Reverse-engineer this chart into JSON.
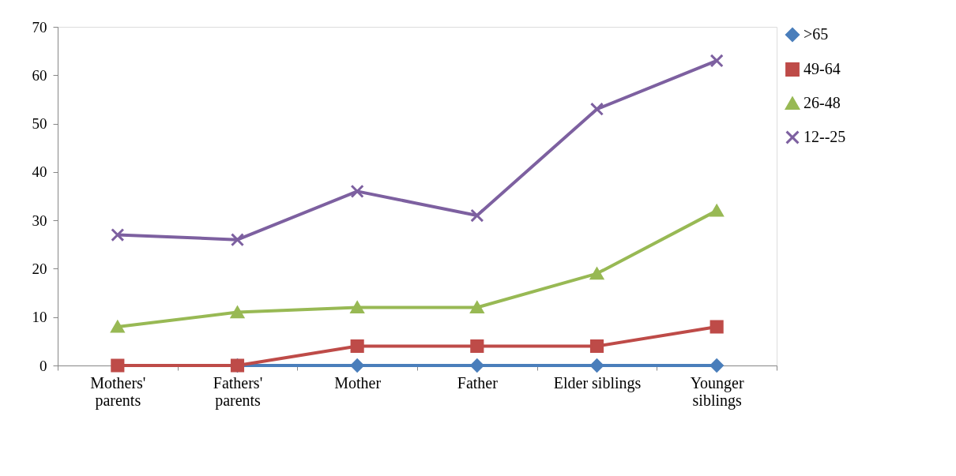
{
  "chart_data": {
    "type": "line",
    "categories": [
      "Mothers'\nparents",
      "Fathers'\nparents",
      "Mother",
      "Father",
      "Elder siblings",
      "Younger\nsiblings"
    ],
    "series": [
      {
        "name": ">65",
        "color": "#4a7ebb",
        "marker": "diamond",
        "values": [
          null,
          0,
          0,
          0,
          0,
          0
        ]
      },
      {
        "name": "49-64",
        "color": "#be4b48",
        "marker": "square",
        "values": [
          0,
          0,
          4,
          4,
          4,
          8
        ]
      },
      {
        "name": "26-48",
        "color": "#98b954",
        "marker": "triangle",
        "values": [
          8,
          11,
          12,
          12,
          19,
          32
        ]
      },
      {
        "name": "12--25",
        "color": "#7d60a0",
        "marker": "cross",
        "values": [
          27,
          26,
          36,
          31,
          53,
          63
        ]
      }
    ],
    "ylim": [
      0,
      70
    ],
    "yticks": [
      0,
      10,
      20,
      30,
      40,
      50,
      60,
      70
    ],
    "grid": false,
    "legend": "right",
    "line_style": "solid"
  }
}
